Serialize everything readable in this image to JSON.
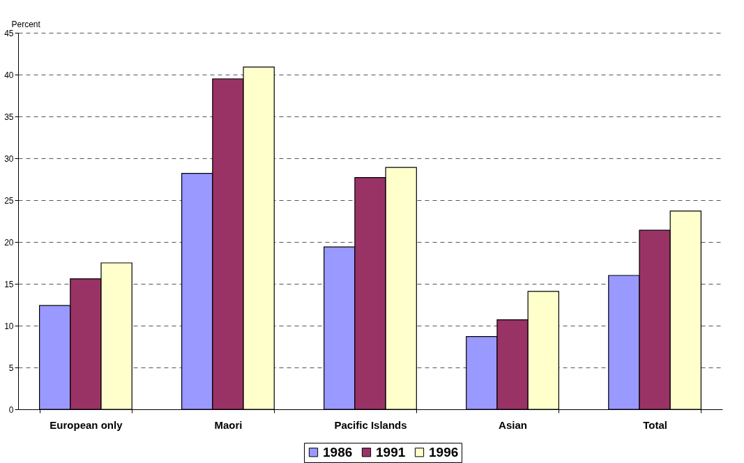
{
  "chart_data": {
    "type": "bar",
    "ylabel": "Percent",
    "categories": [
      "European only",
      "Maori",
      "Pacific Islands",
      "Asian",
      "Total"
    ],
    "series": [
      {
        "name": "1986",
        "color": "#9999ff",
        "values": [
          12.4,
          28.2,
          19.4,
          8.7,
          16.0
        ]
      },
      {
        "name": "1991",
        "color": "#993366",
        "values": [
          15.6,
          39.5,
          27.7,
          10.7,
          21.4
        ]
      },
      {
        "name": "1996",
        "color": "#ffffcc",
        "values": [
          17.5,
          40.9,
          28.9,
          14.1,
          23.7
        ]
      }
    ],
    "ylim": [
      0,
      45
    ],
    "yticks": [
      0,
      5,
      10,
      15,
      20,
      25,
      30,
      35,
      40,
      45
    ],
    "grid": "y",
    "legend": "bottom"
  }
}
